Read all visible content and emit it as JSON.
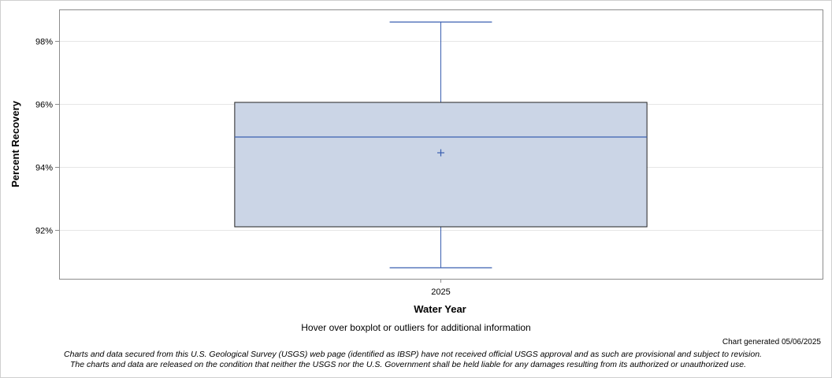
{
  "chart_data": {
    "type": "boxplot",
    "xlabel": "Water Year",
    "ylabel": "Percent Recovery",
    "categories": [
      "2025"
    ],
    "boxes": [
      {
        "category": "2025",
        "whisker_low": 90.8,
        "q1": 92.1,
        "median": 94.95,
        "mean": 94.45,
        "q3": 96.05,
        "whisker_high": 98.6
      }
    ],
    "ylim": [
      90.45,
      99.0
    ],
    "yticks": [
      92,
      94,
      96,
      98
    ],
    "ytick_labels": [
      "92%",
      "94%",
      "96%",
      "98%"
    ],
    "grid": true,
    "colors": {
      "box_fill": "#cbd5e6",
      "box_edge": "#222222",
      "median": "#3a5fb0",
      "whisker": "#3a5fb0",
      "mean_marker": "#3a5fb0",
      "grid": "#e6e6e6"
    }
  },
  "footer": {
    "hover_note": "Hover over boxplot or outliers for additional information",
    "generated": "Chart generated 05/06/2025",
    "disclaimer_line1": "Charts and data secured from this U.S. Geological Survey (USGS) web page (identified as IBSP) have not received official USGS approval and as such are provisional and subject to revision.",
    "disclaimer_line2": "The charts and data are released on the condition that neither the USGS nor the U.S. Government shall be held liable for any damages resulting from its authorized or unauthorized use."
  }
}
